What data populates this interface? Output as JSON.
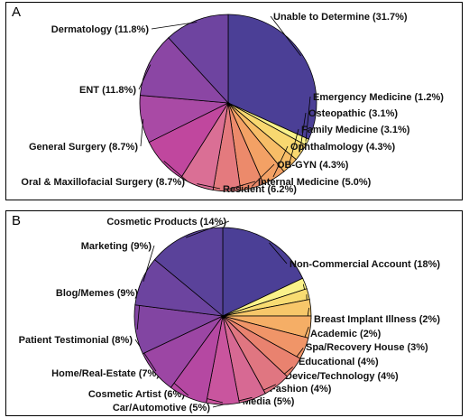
{
  "chart_data": [
    {
      "type": "pie",
      "panel_letter": "A",
      "slices": [
        {
          "label": "Unable to Determine (31.7%)",
          "value": 31.7,
          "color": "#4b3f96"
        },
        {
          "label": "Emergency Medicine (1.2%)",
          "value": 1.2,
          "color": "#faf28a"
        },
        {
          "label": "Osteopathic (3.1%)",
          "value": 3.1,
          "color": "#f8d870"
        },
        {
          "label": "Family Medicine (3.1%)",
          "value": 3.1,
          "color": "#f7bd67"
        },
        {
          "label": "Ophthalmology (4.3%)",
          "value": 4.3,
          "color": "#f3a165"
        },
        {
          "label": "OB-GYN (4.3%)",
          "value": 4.3,
          "color": "#ec8a6b"
        },
        {
          "label": "Internal Medicine (5.0%)",
          "value": 5.0,
          "color": "#e47a7e"
        },
        {
          "label": "Resident (6.2%)",
          "value": 6.2,
          "color": "#da6f95"
        },
        {
          "label": "Oral & Maxillofacial Surgery (8.7%)",
          "value": 8.7,
          "color": "#c0479e"
        },
        {
          "label": "General Surgery (8.7%)",
          "value": 8.7,
          "color": "#a94aa5"
        },
        {
          "label": "ENT (11.8%)",
          "value": 11.8,
          "color": "#8b46a4"
        },
        {
          "label": "Dermatology (11.8%)",
          "value": 11.8,
          "color": "#6e44a0"
        }
      ]
    },
    {
      "type": "pie",
      "panel_letter": "B",
      "slices": [
        {
          "label": "Non-Commercial Account (18%)",
          "value": 18,
          "color": "#4b3f96"
        },
        {
          "label": "Breast Implant Illness (2%)",
          "value": 2,
          "color": "#faf28a"
        },
        {
          "label": "Academic (2%)",
          "value": 2,
          "color": "#f8dc72"
        },
        {
          "label": "Spa/Recovery House (3%)",
          "value": 3,
          "color": "#f7c76a"
        },
        {
          "label": "Educational (4%)",
          "value": 4,
          "color": "#f5ae66"
        },
        {
          "label": "Device/Technology (4%)",
          "value": 4,
          "color": "#f09568"
        },
        {
          "label": "Fashion (4%)",
          "value": 4,
          "color": "#e9826f"
        },
        {
          "label": "Media (5%)",
          "value": 5,
          "color": "#e07681"
        },
        {
          "label": "Car/Automotive (5%)",
          "value": 5,
          "color": "#d76993"
        },
        {
          "label": "Cosmetic Artist (6%)",
          "value": 6,
          "color": "#c9559e"
        },
        {
          "label": "Home/Real-Estate (7%)",
          "value": 7,
          "color": "#b548a2"
        },
        {
          "label": "Patient Testimonial (8%)",
          "value": 8,
          "color": "#9c46a4"
        },
        {
          "label": "Blog/Memes (9%)",
          "value": 9,
          "color": "#8245a2"
        },
        {
          "label": "Marketing (9%)",
          "value": 9,
          "color": "#6c449f"
        },
        {
          "label": "Cosmetic Products (14%)",
          "value": 14,
          "color": "#5a429a"
        }
      ]
    }
  ]
}
